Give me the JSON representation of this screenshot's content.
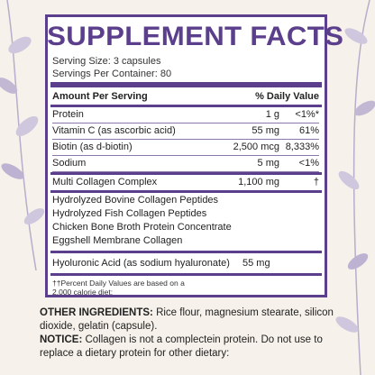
{
  "title": "SUPPLEMENT FACTS",
  "serving_size": "Serving Size: 3 capsules",
  "servings_per_container": "Servings Per Container: 80",
  "header": {
    "amount_per_serving": "Amount Per Serving",
    "daily_value": "% Daily Value"
  },
  "rows": [
    {
      "name": "Protein",
      "amount": "1 g",
      "dv": "<1%*"
    },
    {
      "name": "Vitamin C (as ascorbic acid)",
      "amount": "55 mg",
      "dv": "61%"
    },
    {
      "name": "Biotin (as d-biotin)",
      "amount": "2,500 mcg",
      "dv": "8,333%"
    },
    {
      "name": "Sodium",
      "amount": "5 mg",
      "dv": "<1%"
    },
    {
      "name": "Multi Collagen Complex",
      "amount": "1,100 mg",
      "dv": "†"
    }
  ],
  "complex_items": [
    "Hydrolyzed Bovine Collagen Peptides",
    "Hydrolyzed Fish Collagen Peptides",
    "Chicken Bone Broth Protein Concentrate",
    "Eggshell Membrane Collagen"
  ],
  "hyaluronic": {
    "name": "Hyoluronic Acid (as sodium hyaluronate)",
    "amount": "55 mg"
  },
  "footnote_line1": "††Percent Daily Values are based on a",
  "footnote_line2": "2,000 calorie diet:",
  "other_ingredients_label": "OTHER INGREDIENTS:",
  "other_ingredients_text": " Rice flour, magnesium stearate, silicon dioxide, gelatin (capsule).",
  "notice_label": "NOTICE:",
  "notice_text": " Collagen is not a complectein protein. Do not use to replace a dietary protein for other dietary:",
  "colors": {
    "accent": "#5b3f8c",
    "background": "#f6f1ea",
    "leaf": "#b7aecb"
  }
}
